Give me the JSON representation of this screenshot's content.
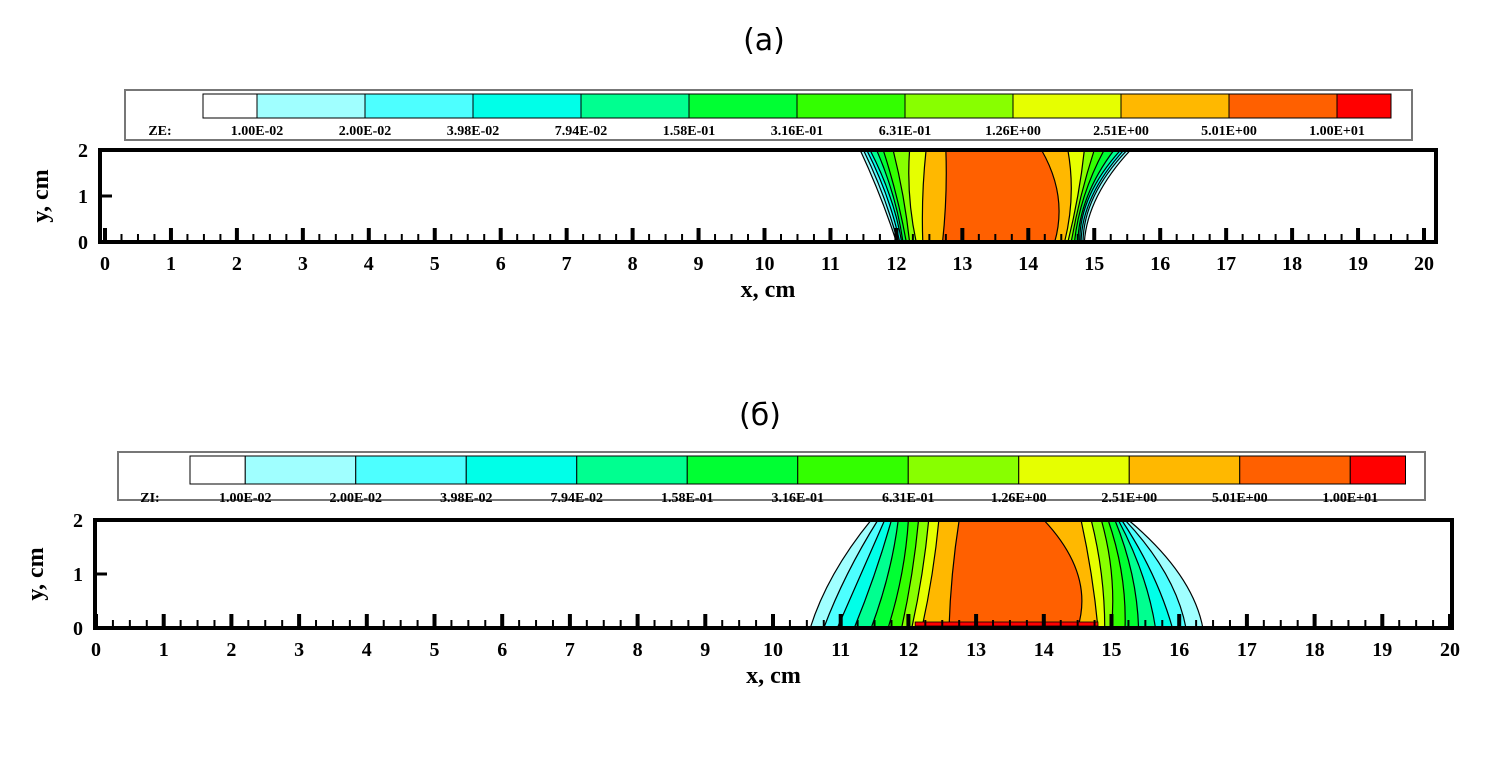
{
  "chart_data": [
    {
      "type": "contour",
      "title": "(a)",
      "variable": "ZE:",
      "xlabel": "x, cm",
      "ylabel": "y, cm",
      "xlim": [
        0,
        20
      ],
      "ylim": [
        0,
        2
      ],
      "xticks": [
        "0",
        "1",
        "2",
        "3",
        "4",
        "5",
        "6",
        "7",
        "8",
        "9",
        "10",
        "11",
        "12",
        "13",
        "14",
        "15",
        "16",
        "17",
        "18",
        "19",
        "20"
      ],
      "yticks": [
        "0",
        "1",
        "2"
      ],
      "levels": [
        "1.00E-02",
        "2.00E-02",
        "3.98E-02",
        "7.94E-02",
        "1.58E-01",
        "3.16E-01",
        "6.31E-01",
        "1.26E+00",
        "2.51E+00",
        "5.01E+00",
        "1.00E+01"
      ],
      "contour_y": [
        0,
        1,
        2
      ],
      "bands": [
        {
          "left": [
            12.0,
            11.75,
            11.45
          ],
          "right": [
            14.85,
            15.05,
            15.55
          ]
        },
        {
          "left": [
            12.02,
            11.8,
            11.5
          ],
          "right": [
            14.83,
            15.0,
            15.5
          ]
        },
        {
          "left": [
            12.05,
            11.85,
            11.55
          ],
          "right": [
            14.8,
            14.97,
            15.45
          ]
        },
        {
          "left": [
            12.08,
            11.9,
            11.6
          ],
          "right": [
            14.78,
            14.93,
            15.4
          ]
        },
        {
          "left": [
            12.1,
            11.95,
            11.7
          ],
          "right": [
            14.75,
            14.9,
            15.3
          ]
        },
        {
          "left": [
            12.15,
            12.0,
            11.8
          ],
          "right": [
            14.7,
            14.85,
            15.15
          ]
        },
        {
          "left": [
            12.2,
            12.1,
            11.95
          ],
          "right": [
            14.65,
            14.8,
            15.0
          ]
        },
        {
          "left": [
            12.3,
            12.2,
            12.2
          ],
          "right": [
            14.6,
            14.75,
            14.85
          ]
        },
        {
          "left": [
            12.4,
            12.4,
            12.45
          ],
          "right": [
            14.55,
            14.65,
            14.6
          ]
        },
        {
          "left": [
            12.7,
            12.75,
            12.75
          ],
          "right": [
            14.4,
            14.45,
            14.2
          ]
        }
      ]
    },
    {
      "type": "contour",
      "title": "(б)",
      "variable": "ZI:",
      "xlabel": "x, cm",
      "ylabel": "y, cm",
      "xlim": [
        0,
        20
      ],
      "ylim": [
        0,
        2
      ],
      "xticks": [
        "0",
        "1",
        "2",
        "3",
        "4",
        "5",
        "6",
        "7",
        "8",
        "9",
        "10",
        "11",
        "12",
        "13",
        "14",
        "15",
        "16",
        "17",
        "18",
        "19",
        "20"
      ],
      "yticks": [
        "0",
        "1",
        "2"
      ],
      "levels": [
        "1.00E-02",
        "2.00E-02",
        "3.98E-02",
        "7.94E-02",
        "1.58E-01",
        "3.16E-01",
        "6.31E-01",
        "1.26E+00",
        "2.51E+00",
        "5.01E+00",
        "1.00E+01"
      ],
      "contour_y": [
        0,
        1,
        2
      ],
      "bands": [
        {
          "left": [
            10.55,
            10.9,
            11.45
          ],
          "right": [
            16.35,
            16.0,
            15.25
          ]
        },
        {
          "left": [
            10.75,
            11.1,
            11.55
          ],
          "right": [
            16.1,
            15.8,
            15.2
          ]
        },
        {
          "left": [
            10.95,
            11.3,
            11.65
          ],
          "right": [
            15.9,
            15.6,
            15.15
          ]
        },
        {
          "left": [
            11.2,
            11.5,
            11.75
          ],
          "right": [
            15.65,
            15.45,
            15.1
          ]
        },
        {
          "left": [
            11.45,
            11.7,
            11.85
          ],
          "right": [
            15.4,
            15.3,
            15.05
          ]
        },
        {
          "left": [
            11.7,
            11.9,
            12.0
          ],
          "right": [
            15.2,
            15.15,
            14.95
          ]
        },
        {
          "left": [
            11.9,
            12.05,
            12.15
          ],
          "right": [
            15.0,
            15.0,
            14.85
          ]
        },
        {
          "left": [
            12.05,
            12.2,
            12.3
          ],
          "right": [
            14.9,
            14.85,
            14.7
          ]
        },
        {
          "left": [
            12.2,
            12.35,
            12.45
          ],
          "right": [
            14.8,
            14.7,
            14.55
          ]
        },
        {
          "left": [
            12.6,
            12.65,
            12.75
          ],
          "right": [
            14.5,
            14.5,
            14.0
          ]
        }
      ]
    }
  ],
  "colors": [
    "#ffffff",
    "#a0ffff",
    "#4dffff",
    "#00ffe8",
    "#00ff90",
    "#00ff33",
    "#33ff00",
    "#88ff00",
    "#e6ff00",
    "#ffb800",
    "#ff6000",
    "#ff0000"
  ]
}
